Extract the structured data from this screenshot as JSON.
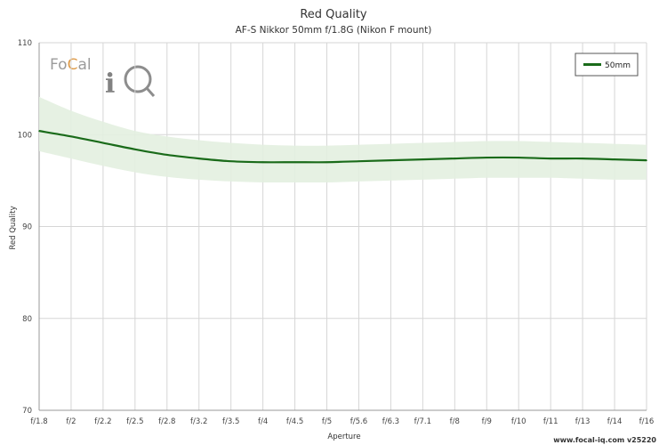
{
  "chart_data": {
    "type": "line",
    "title": "Red Quality",
    "subtitle": "AF-S Nikkor 50mm f/1.8G (Nikon F mount)",
    "xlabel": "Aperture",
    "ylabel": "Red Quality",
    "categories": [
      "f/1.8",
      "f/2",
      "f/2.2",
      "f/2.5",
      "f/2.8",
      "f/3.2",
      "f/3.5",
      "f/4",
      "f/4.5",
      "f/5",
      "f/5.6",
      "f/6.3",
      "f/7.1",
      "f/8",
      "f/9",
      "f/10",
      "f/11",
      "f/13",
      "f/14",
      "f/16"
    ],
    "ylim": [
      70,
      110
    ],
    "yticks": [
      70,
      80,
      90,
      100,
      110
    ],
    "grid": true,
    "legend_position": "top-right",
    "series": [
      {
        "name": "50mm",
        "color": "#1a6b1a",
        "band_color": "#e3efe0",
        "values": [
          100.4,
          99.8,
          99.1,
          98.4,
          97.8,
          97.4,
          97.1,
          97.0,
          97.0,
          97.0,
          97.1,
          97.2,
          97.3,
          97.4,
          97.5,
          97.5,
          97.4,
          97.4,
          97.3,
          97.2
        ],
        "upper": [
          104.1,
          102.6,
          101.4,
          100.4,
          99.8,
          99.4,
          99.1,
          98.9,
          98.8,
          98.8,
          98.9,
          99.0,
          99.1,
          99.2,
          99.3,
          99.3,
          99.2,
          99.1,
          99.0,
          98.9
        ],
        "lower": [
          98.2,
          97.4,
          96.6,
          95.9,
          95.4,
          95.1,
          94.9,
          94.8,
          94.8,
          94.8,
          94.9,
          95.0,
          95.1,
          95.2,
          95.3,
          95.3,
          95.3,
          95.2,
          95.1,
          95.1
        ]
      }
    ]
  },
  "logo": {
    "text_focal": "Focal",
    "text_iq": "iQ"
  },
  "footer": "www.focal-iq.com  v25220"
}
